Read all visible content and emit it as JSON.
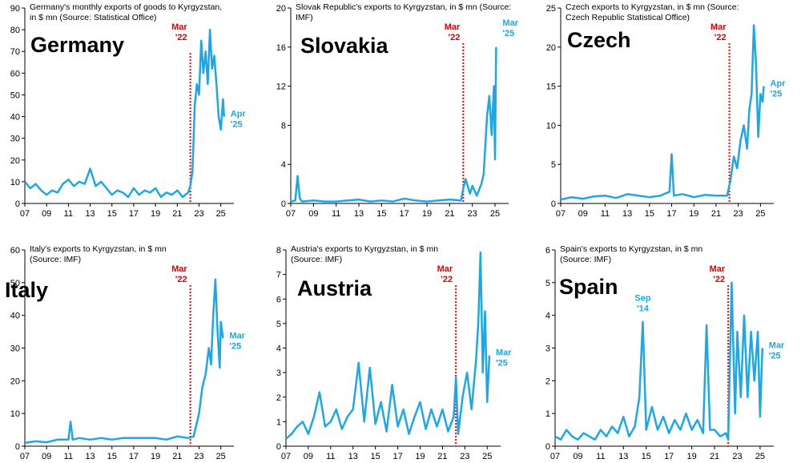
{
  "chart_data": [
    {
      "type": "line",
      "country": "Germany",
      "title_lines": [
        "Germany's monthly exports of goods to Kyrgyzstan,",
        "in $ mn (Source: Statistical Office)"
      ],
      "ylim": [
        0,
        90
      ],
      "yticks": [
        0,
        10,
        20,
        30,
        40,
        50,
        60,
        70,
        80,
        90
      ],
      "xticks": [
        "07",
        "09",
        "11",
        "13",
        "15",
        "17",
        "19",
        "21",
        "23",
        "25"
      ],
      "event": {
        "x": 2022.2,
        "label": [
          "Mar",
          "'22"
        ]
      },
      "end_label": [
        "Apr",
        "'25"
      ],
      "series": {
        "name": "Germany",
        "color": "#1ea7e8",
        "x": [
          2007,
          2007.5,
          2008,
          2008.5,
          2009,
          2009.5,
          2010,
          2010.5,
          2011,
          2011.5,
          2012,
          2012.5,
          2013,
          2013.5,
          2014,
          2014.5,
          2015,
          2015.5,
          2016,
          2016.5,
          2017,
          2017.5,
          2018,
          2018.5,
          2019,
          2019.5,
          2020,
          2020.5,
          2021,
          2021.5,
          2022,
          2022.2,
          2022.4,
          2022.6,
          2022.8,
          2023,
          2023.2,
          2023.4,
          2023.6,
          2023.8,
          2024,
          2024.2,
          2024.4,
          2024.6,
          2024.8,
          2025,
          2025.2,
          2025.3
        ],
        "y": [
          10,
          7,
          9,
          6,
          4,
          6,
          5,
          9,
          11,
          8,
          10,
          9,
          16,
          8,
          10,
          7,
          4,
          6,
          5,
          3,
          7,
          4,
          6,
          5,
          7,
          3,
          5,
          4,
          6,
          3,
          5,
          8,
          15,
          45,
          55,
          50,
          75,
          60,
          70,
          55,
          80,
          62,
          68,
          55,
          40,
          34,
          48,
          40
        ]
      }
    },
    {
      "type": "line",
      "country": "Slovakia",
      "title_lines": [
        "Slovak Republic's exports to Kyrgyzstan, in $ mn (Source:",
        "IMF)"
      ],
      "ylim": [
        0,
        20
      ],
      "yticks": [
        0,
        4,
        8,
        12,
        16,
        20
      ],
      "xticks": [
        "07",
        "09",
        "11",
        "13",
        "15",
        "17",
        "19",
        "21",
        "23",
        "25"
      ],
      "event": {
        "x": 2022.2,
        "label": [
          "Mar",
          "'22"
        ]
      },
      "end_label": [
        "Mar",
        "'25"
      ],
      "series": {
        "name": "Slovakia",
        "color": "#1ea7e8",
        "x": [
          2007,
          2007.4,
          2007.6,
          2007.8,
          2008,
          2009,
          2010,
          2011,
          2012,
          2013,
          2014,
          2015,
          2016,
          2017,
          2018,
          2019,
          2020,
          2021,
          2022,
          2022.2,
          2022.4,
          2022.8,
          2023,
          2023.4,
          2023.8,
          2024,
          2024.3,
          2024.5,
          2024.7,
          2024.9,
          2025,
          2025.1
        ],
        "y": [
          0.2,
          0.3,
          2.8,
          0.5,
          0.2,
          0.3,
          0.2,
          0.2,
          0.3,
          0.4,
          0.2,
          0.3,
          0.2,
          0.5,
          0.3,
          0.2,
          0.3,
          0.4,
          0.3,
          1.5,
          2.5,
          1.0,
          1.8,
          0.8,
          2.0,
          3.0,
          9.0,
          11.0,
          7.0,
          12.0,
          4.5,
          16.0
        ]
      }
    },
    {
      "type": "line",
      "country": "Czech",
      "title_lines": [
        "Czech exports to Kyrgyzstan, in $ mn (Source:",
        "Czech Republic Statistical Office)"
      ],
      "ylim": [
        0,
        25
      ],
      "yticks": [
        0,
        5,
        10,
        15,
        20,
        25
      ],
      "xticks": [
        "07",
        "09",
        "11",
        "13",
        "15",
        "17",
        "19",
        "21",
        "23",
        "25"
      ],
      "event": {
        "x": 2022.2,
        "label": [
          "Mar",
          "'22"
        ]
      },
      "end_label": [
        "Apr",
        "'25"
      ],
      "series": {
        "name": "Czech",
        "color": "#1ea7e8",
        "x": [
          2007,
          2008,
          2009,
          2010,
          2011,
          2012,
          2013,
          2014,
          2015,
          2016,
          2016.8,
          2017,
          2017.2,
          2018,
          2019,
          2020,
          2021,
          2022,
          2022.3,
          2022.6,
          2022.9,
          2023.2,
          2023.5,
          2023.8,
          2024,
          2024.2,
          2024.4,
          2024.6,
          2024.8,
          2025,
          2025.2,
          2025.3
        ],
        "y": [
          0.5,
          0.8,
          0.6,
          0.9,
          1.0,
          0.7,
          1.2,
          1.0,
          0.8,
          1.0,
          1.5,
          6.3,
          1.0,
          1.2,
          0.8,
          1.1,
          1.0,
          1.0,
          3.0,
          6.0,
          4.5,
          8.0,
          10.0,
          7.0,
          12.0,
          14.0,
          22.8,
          18.0,
          8.5,
          14.0,
          13.0,
          15.0
        ]
      }
    },
    {
      "type": "line",
      "country": "Italy",
      "title_lines": [
        "Italy's exports to Kyrgyzstan, in $ mn",
        "(Source: IMF)"
      ],
      "ylim": [
        0,
        60
      ],
      "yticks": [
        0,
        10,
        20,
        30,
        40,
        50,
        60
      ],
      "xticks": [
        "07",
        "09",
        "11",
        "13",
        "15",
        "17",
        "19",
        "21",
        "23",
        "25"
      ],
      "event": {
        "x": 2022.2,
        "label": [
          "Mar",
          "'22"
        ]
      },
      "end_label": [
        "Mar",
        "'25"
      ],
      "series": {
        "name": "Italy",
        "color": "#1ea7e8",
        "x": [
          2007,
          2008,
          2009,
          2010,
          2011,
          2011.2,
          2011.4,
          2012,
          2013,
          2014,
          2015,
          2016,
          2017,
          2018,
          2019,
          2020,
          2021,
          2022,
          2022.5,
          2023,
          2023.3,
          2023.6,
          2023.9,
          2024.1,
          2024.3,
          2024.5,
          2024.7,
          2024.9,
          2025,
          2025.2
        ],
        "y": [
          1.0,
          1.5,
          1.2,
          2.0,
          2.0,
          7.5,
          2.0,
          2.5,
          2.0,
          2.5,
          2.0,
          2.5,
          2.5,
          2.5,
          2.5,
          2.0,
          3.0,
          2.5,
          3.0,
          10.0,
          18.0,
          22.0,
          30.0,
          25.0,
          40.0,
          51.0,
          35.0,
          24.0,
          38.0,
          33.0
        ]
      }
    },
    {
      "type": "line",
      "country": "Austria",
      "title_lines": [
        "Austria's exports to Kyrgyzstan, in $ mn",
        "(Source: IMF)"
      ],
      "ylim": [
        0,
        8
      ],
      "yticks": [
        0,
        1,
        2,
        3,
        4,
        5,
        6,
        7,
        8
      ],
      "xticks": [
        "07",
        "09",
        "11",
        "13",
        "15",
        "17",
        "19",
        "21",
        "23",
        "25"
      ],
      "event": {
        "x": 2022.2,
        "label": [
          "Mar",
          "'22"
        ]
      },
      "end_label": [
        "Mar",
        "'25"
      ],
      "series": {
        "name": "Austria",
        "color": "#1ea7e8",
        "x": [
          2007,
          2007.5,
          2008,
          2008.5,
          2009,
          2009.5,
          2010,
          2010.5,
          2011,
          2011.5,
          2012,
          2012.5,
          2013,
          2013.5,
          2014,
          2014.5,
          2015,
          2015.5,
          2016,
          2016.5,
          2017,
          2017.5,
          2018,
          2018.5,
          2019,
          2019.5,
          2020,
          2020.5,
          2021,
          2021.5,
          2022,
          2022.2,
          2022.4,
          2022.8,
          2023.2,
          2023.6,
          2024,
          2024.2,
          2024.4,
          2024.6,
          2024.8,
          2025,
          2025.2
        ],
        "y": [
          0.3,
          0.5,
          0.8,
          1.0,
          0.5,
          1.2,
          2.2,
          0.8,
          1.0,
          1.5,
          0.7,
          1.2,
          1.5,
          3.4,
          1.0,
          3.2,
          0.9,
          1.8,
          0.6,
          2.5,
          0.8,
          1.5,
          0.5,
          1.2,
          1.8,
          0.7,
          1.5,
          0.8,
          1.5,
          0.6,
          1.2,
          2.8,
          0.5,
          2.0,
          3.0,
          1.5,
          3.5,
          5.0,
          7.9,
          3.0,
          5.5,
          1.8,
          3.7
        ]
      }
    },
    {
      "type": "line",
      "country": "Spain",
      "title_lines": [
        "Spain's exports to Kyrgyzstan, in $ mn",
        "(Source: IMF)"
      ],
      "ylim": [
        0,
        6
      ],
      "yticks": [
        0,
        1,
        2,
        3,
        4,
        5,
        6
      ],
      "xticks": [
        "07",
        "09",
        "11",
        "13",
        "15",
        "17",
        "19",
        "21",
        "23",
        "25"
      ],
      "event": {
        "x": 2022.2,
        "label": [
          "Mar",
          "'22"
        ]
      },
      "spike_label": {
        "x": 2014.7,
        "label": [
          "Sep",
          "'14"
        ]
      },
      "end_label": [
        "Mar",
        "'25"
      ],
      "series": {
        "name": "Spain",
        "color": "#1ea7e8",
        "x": [
          2007,
          2007.5,
          2008,
          2008.5,
          2009,
          2009.5,
          2010,
          2010.5,
          2011,
          2011.5,
          2012,
          2012.5,
          2013,
          2013.5,
          2014,
          2014.4,
          2014.7,
          2015,
          2015.5,
          2016,
          2016.5,
          2017,
          2017.5,
          2018,
          2018.5,
          2019,
          2019.5,
          2020,
          2020.3,
          2020.6,
          2021,
          2021.5,
          2022,
          2022.2,
          2022.5,
          2022.8,
          2023,
          2023.3,
          2023.6,
          2023.9,
          2024.2,
          2024.5,
          2024.8,
          2025,
          2025.2
        ],
        "y": [
          0.3,
          0.2,
          0.5,
          0.3,
          0.2,
          0.4,
          0.3,
          0.2,
          0.5,
          0.3,
          0.6,
          0.4,
          0.9,
          0.3,
          0.6,
          1.5,
          3.8,
          0.5,
          1.2,
          0.5,
          0.9,
          0.4,
          0.8,
          0.5,
          1.0,
          0.5,
          0.8,
          0.4,
          3.7,
          0.5,
          0.5,
          0.3,
          0.4,
          0.2,
          5.0,
          1.0,
          3.5,
          1.5,
          4.0,
          1.5,
          3.5,
          2.0,
          3.5,
          0.9,
          3.0
        ]
      }
    }
  ]
}
